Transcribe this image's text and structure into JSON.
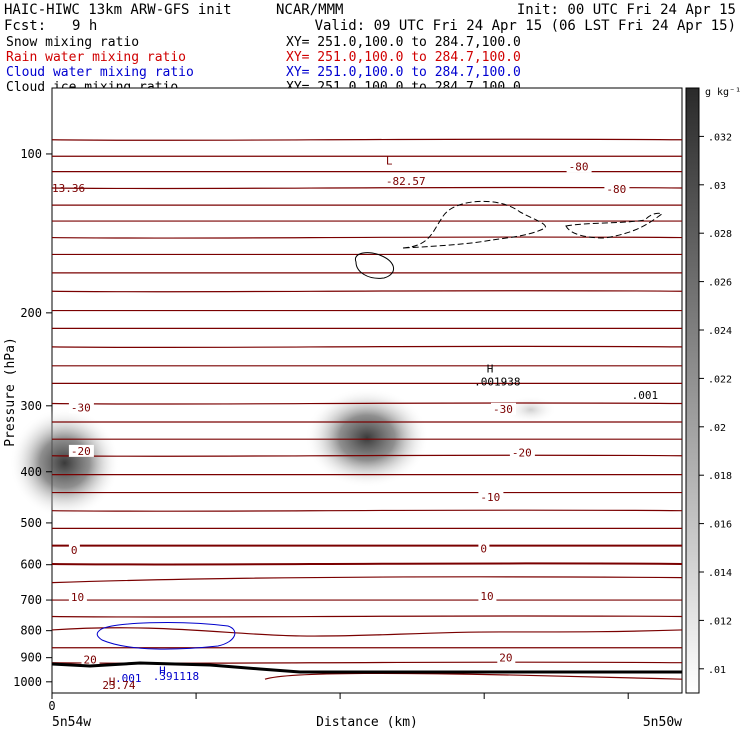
{
  "header": {
    "title_left": "HAIC-HIWC 13km ARW-GFS init",
    "center": "NCAR/MMM",
    "init": "Init: 00 UTC Fri 24 Apr 15",
    "fcst_label": "Fcst:",
    "fcst_value": "9 h",
    "valid": "Valid: 09 UTC Fri 24 Apr 15 (06 LST Fri 24 Apr 15)"
  },
  "fields": [
    {
      "name": "Snow mixing ratio",
      "xy": "XY= 251.0,100.0 to 284.7,100.0",
      "color": "#000000"
    },
    {
      "name": "Rain water mixing ratio",
      "xy": "XY= 251.0,100.0 to 284.7,100.0",
      "color": "#d00000"
    },
    {
      "name": "Cloud water mixing ratio",
      "xy": "XY= 251.0,100.0 to 284.7,100.0",
      "color": "#0000d0"
    },
    {
      "name": "Cloud ice mixing ratio",
      "xy": "XY= 251.0,100.0 to 284.7,100.0",
      "color": "#000000"
    }
  ],
  "colors": {
    "temperature_contour": "#7a0000",
    "cloud_water_contour": "#0000cc",
    "terrain": "#000000",
    "shading": "#444444"
  },
  "chart_data": {
    "type": "cross-section",
    "ylabel": "Pressure (hPa)",
    "xlabel": "Distance (km)",
    "x_start_label": "5n54w",
    "x_end_label": "5n50w",
    "x_tick_label": "0",
    "y_axis": {
      "scale": "log",
      "range": [
        1050,
        75
      ],
      "ticks": [
        100,
        200,
        300,
        400,
        500,
        600,
        700,
        800,
        900,
        1000
      ]
    },
    "x_range": [
      0,
      1
    ],
    "colorbar": {
      "unit": "g kg⁻¹",
      "ticks": [
        ".01",
        ".012",
        ".014",
        ".016",
        ".018",
        ".02",
        ".022",
        ".024",
        ".026",
        ".028",
        ".03",
        ".032"
      ],
      "range": [
        0.009,
        0.034
      ]
    },
    "temperature_contours": [
      {
        "label": "-80",
        "x": 0.82,
        "p": 107
      },
      {
        "label": "-80",
        "x": 0.88,
        "p": 118
      },
      {
        "label": "-82.57",
        "x": 0.53,
        "p": 114
      },
      {
        "label": "-30",
        "x": 0.03,
        "p": 306
      },
      {
        "label": "-30",
        "x": 0.7,
        "p": 308
      },
      {
        "label": "-20",
        "x": 0.03,
        "p": 370
      },
      {
        "label": "-20",
        "x": 0.73,
        "p": 373
      },
      {
        "label": "-10",
        "x": 0.68,
        "p": 452
      },
      {
        "label": "0",
        "x": 0.03,
        "p": 570
      },
      {
        "label": "0",
        "x": 0.68,
        "p": 567
      },
      {
        "label": "10",
        "x": 0.03,
        "p": 700
      },
      {
        "label": "10",
        "x": 0.68,
        "p": 697
      },
      {
        "label": "20",
        "x": 0.05,
        "p": 920
      },
      {
        "label": "20",
        "x": 0.71,
        "p": 912
      }
    ],
    "annotations": [
      {
        "label": "L",
        "x": 0.53,
        "p": 103,
        "color": "#7a0000"
      },
      {
        "label": "13.36",
        "x": 0.0,
        "p": 116,
        "color": "#7a0000"
      },
      {
        "label": "H",
        "x": 0.69,
        "p": 255,
        "color": "#000000"
      },
      {
        "label": ".001938",
        "x": 0.67,
        "p": 270,
        "color": "#000000"
      },
      {
        "label": ".001",
        "x": 0.92,
        "p": 286,
        "color": "#000000"
      },
      {
        "label": "H",
        "x": 0.17,
        "p": 952,
        "color": "#0000cc"
      },
      {
        "label": ".391118",
        "x": 0.16,
        "p": 975,
        "color": "#0000cc"
      },
      {
        "label": ".001",
        "x": 0.1,
        "p": 984,
        "color": "#0000cc"
      },
      {
        "label": "H",
        "x": 0.09,
        "p": 998,
        "color": "#7a0000"
      },
      {
        "label": "23.74",
        "x": 0.08,
        "p": 1013,
        "color": "#7a0000"
      }
    ],
    "shaded_regions": [
      {
        "x_center": 0.02,
        "p_center": 385,
        "max": 0.033
      },
      {
        "x_center": 0.5,
        "p_center": 345,
        "max": 0.034
      },
      {
        "x_center": 0.76,
        "p_center": 305,
        "max": 0.012
      }
    ]
  }
}
